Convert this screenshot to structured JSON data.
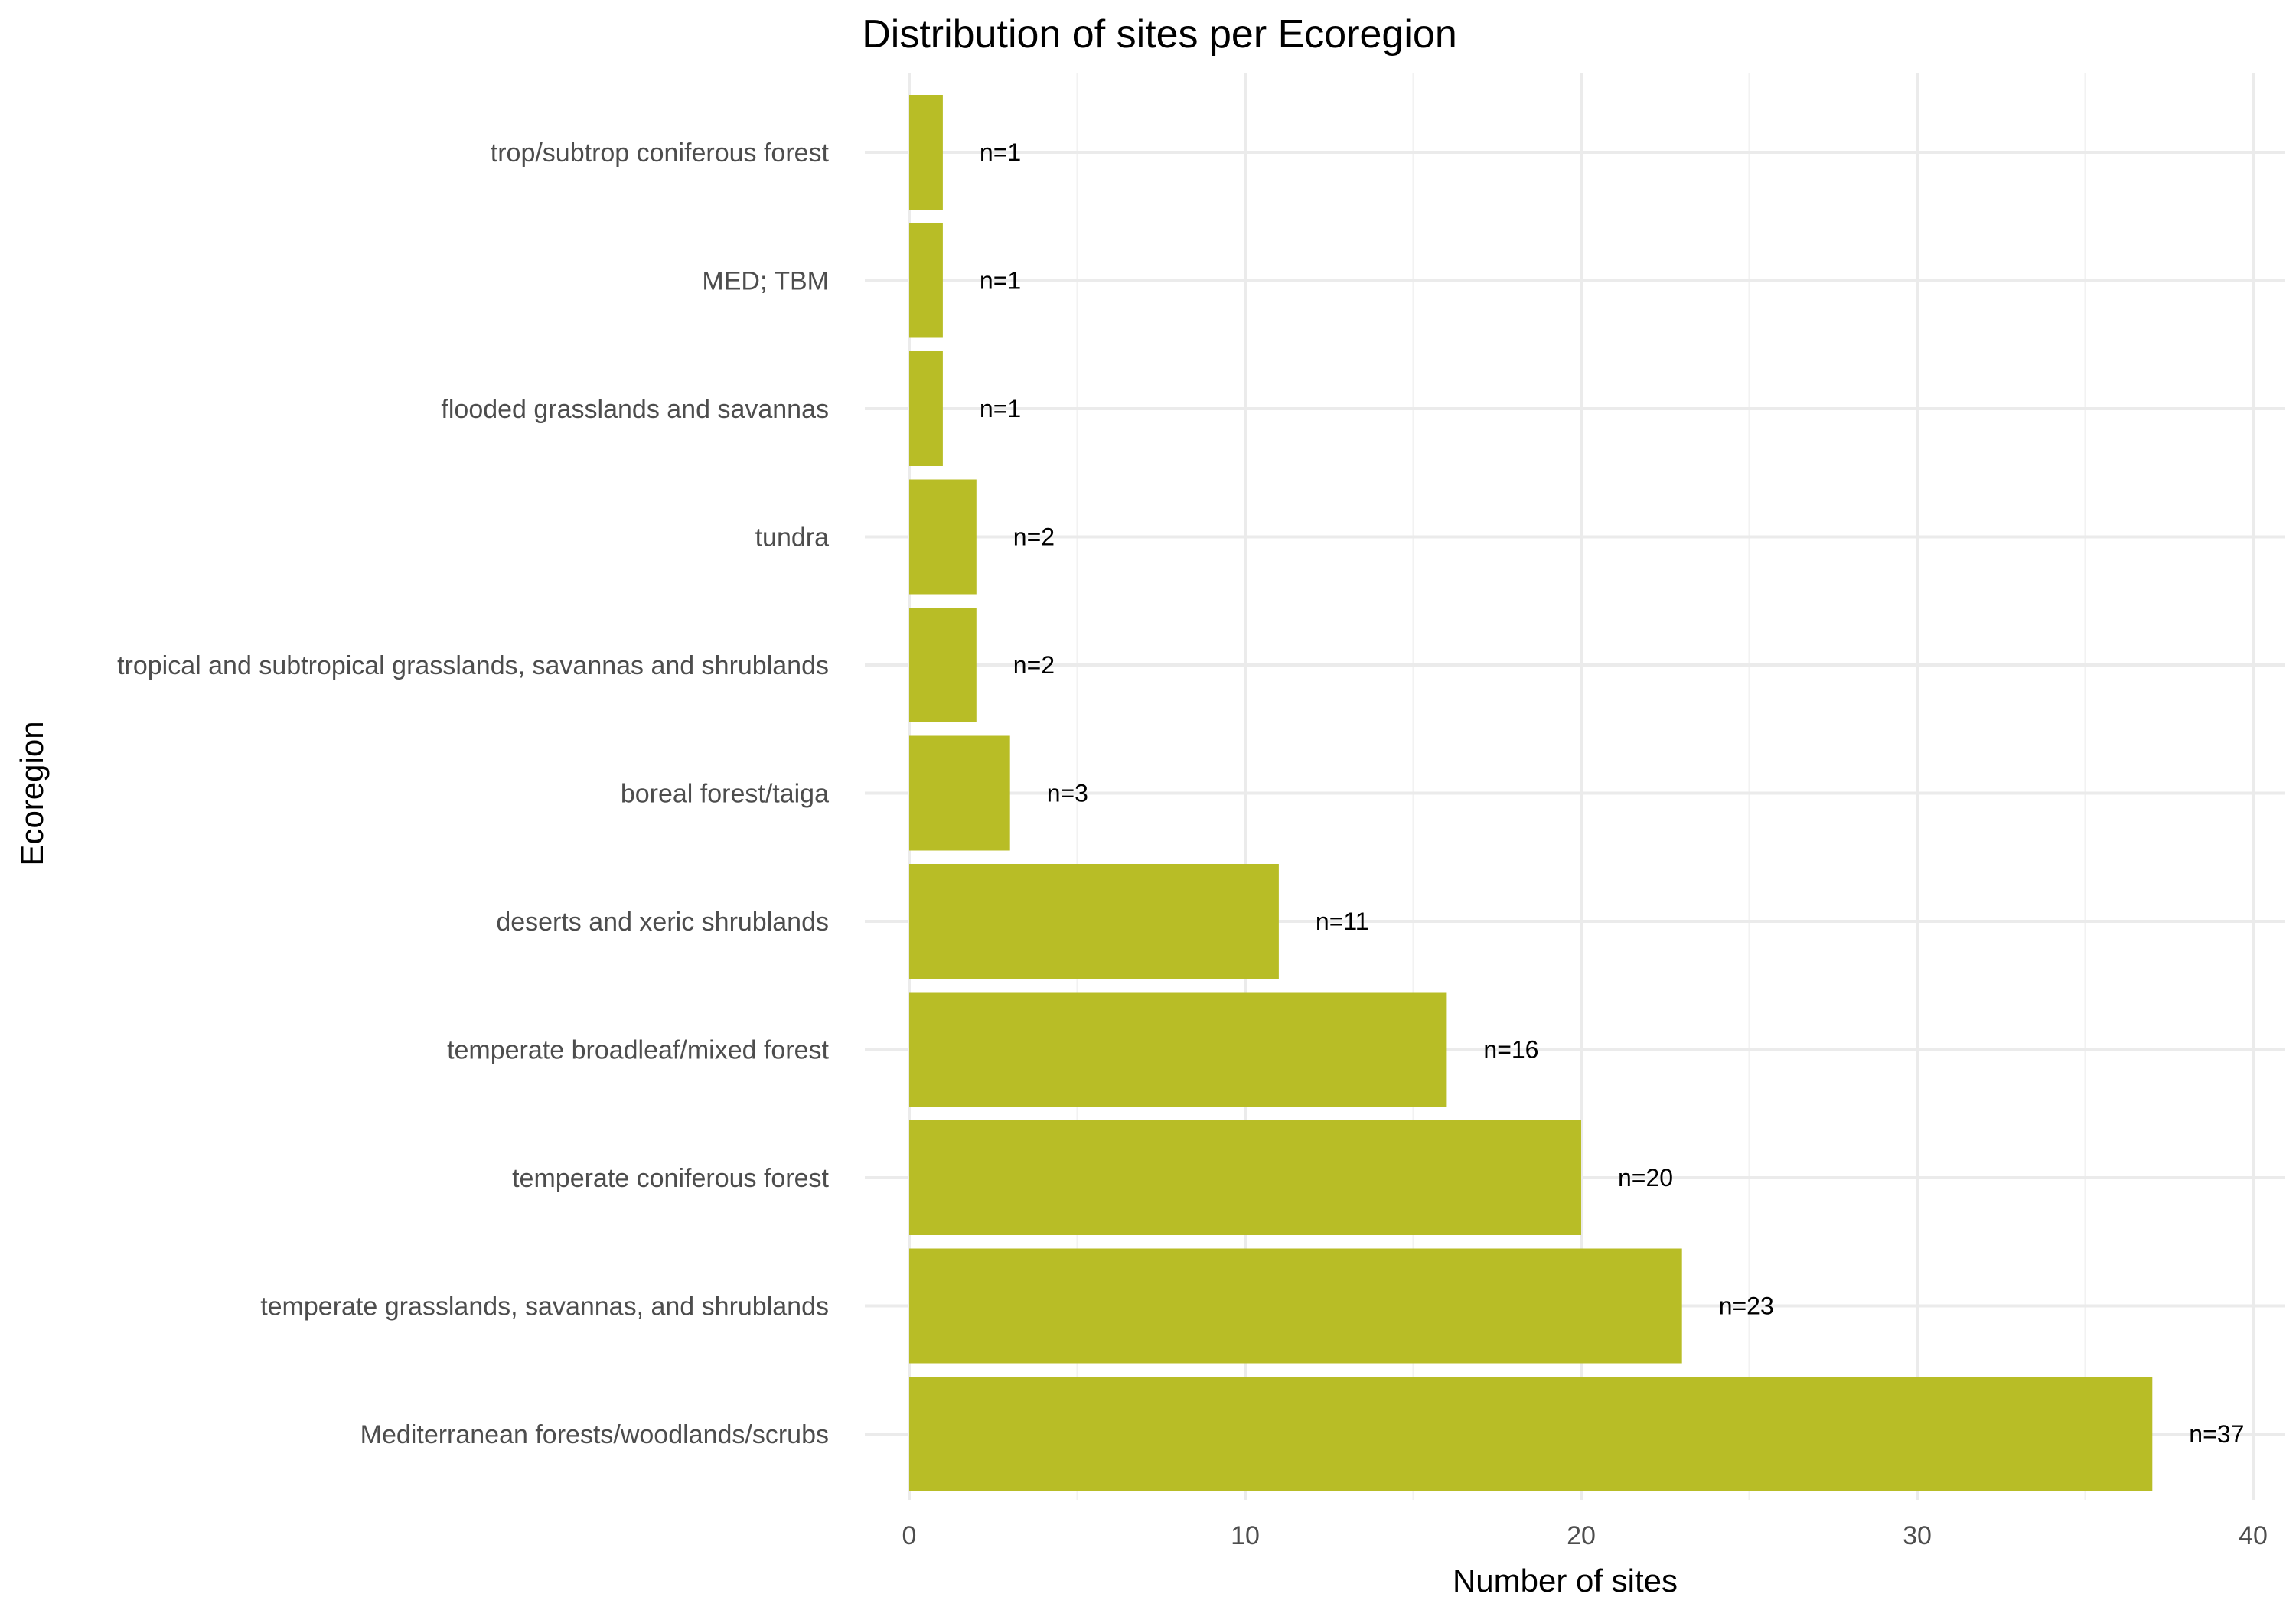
{
  "chart_data": {
    "type": "bar",
    "orientation": "horizontal",
    "title": "Distribution of sites per Ecoregion",
    "xlabel": "Number of sites",
    "ylabel": "Ecoregion",
    "xlim": [
      0,
      40
    ],
    "x_ticks": [
      0,
      10,
      20,
      30,
      40
    ],
    "grid": true,
    "legend": "none",
    "bar_color": "#b8bd26",
    "categories": [
      "Mediterranean forests/woodlands/scrubs",
      "temperate grasslands, savannas, and shrublands",
      "temperate coniferous forest",
      "temperate broadleaf/mixed forest",
      "deserts and xeric shrublands",
      "boreal forest/taiga",
      "tropical and subtropical grasslands, savannas and shrublands",
      "tundra",
      "flooded grasslands and savannas",
      "MED; TBM",
      "trop/subtrop coniferous forest"
    ],
    "values": [
      37,
      23,
      20,
      16,
      11,
      3,
      2,
      2,
      1,
      1,
      1
    ],
    "data_labels": [
      "n=37",
      "n=23",
      "n=20",
      "n=16",
      "n=11",
      "n=3",
      "n=2",
      "n=2",
      "n=1",
      "n=1",
      "n=1"
    ]
  }
}
